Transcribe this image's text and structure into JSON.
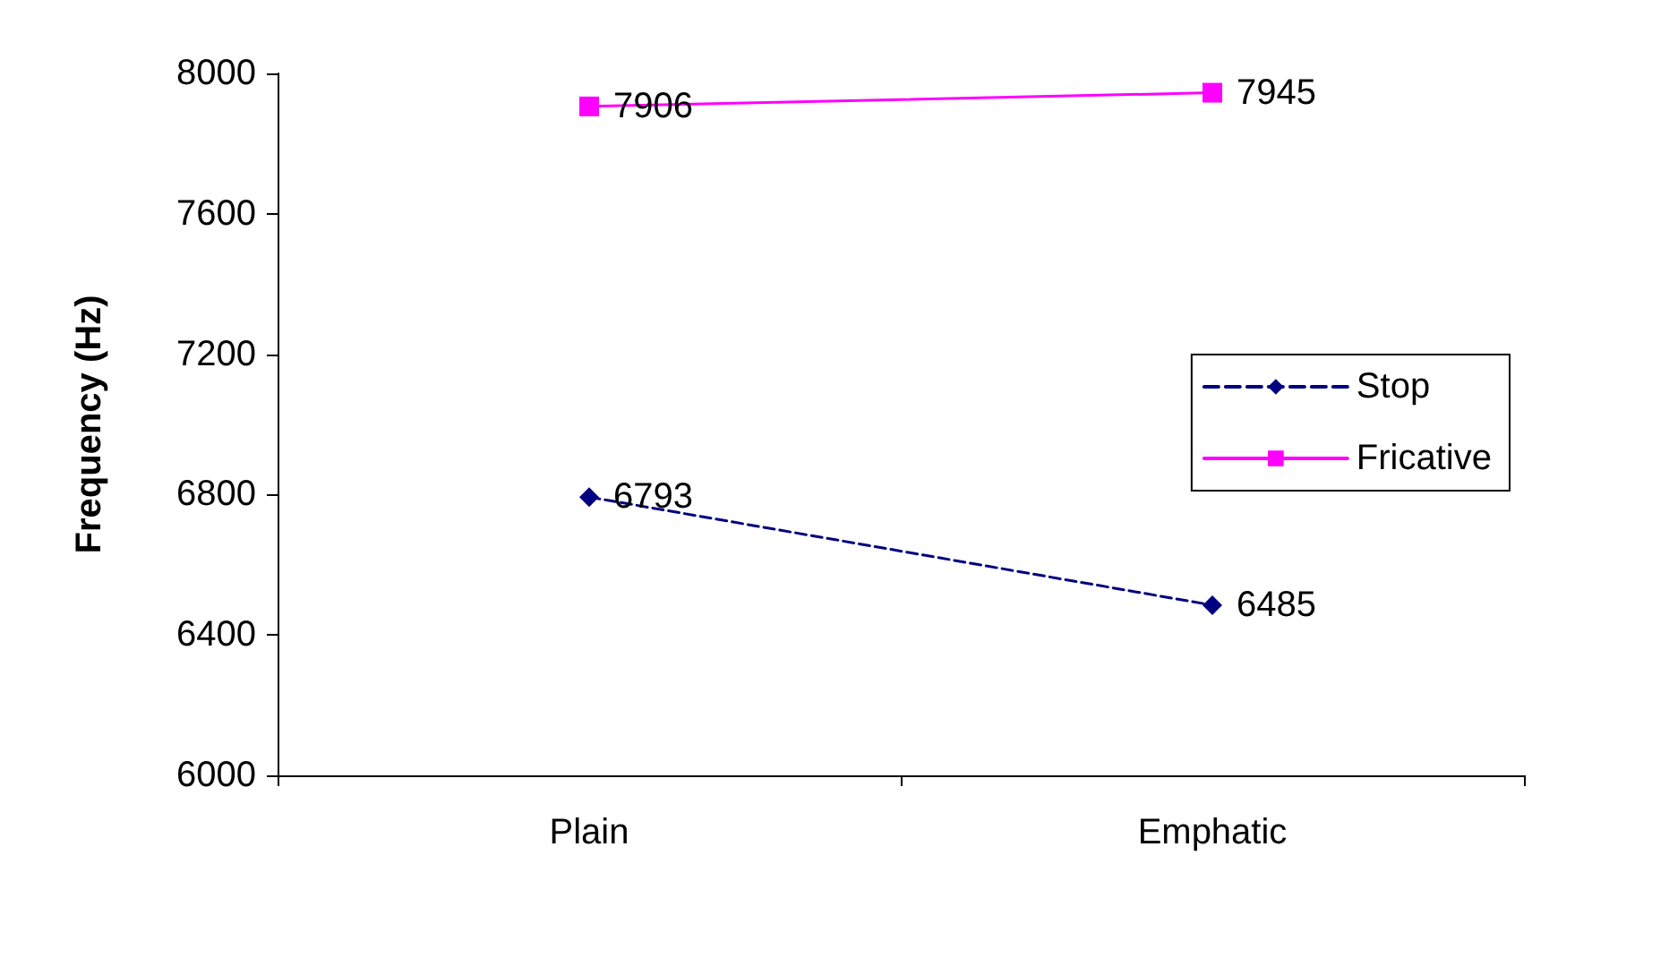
{
  "chart_data": {
    "type": "line",
    "ylabel": "Frequency (Hz)",
    "categories": [
      "Plain",
      "Emphatic"
    ],
    "series": [
      {
        "name": "Stop",
        "color": "#000080",
        "values": [
          6793,
          6485
        ],
        "marker": "diamond",
        "line_style": "dashed"
      },
      {
        "name": "Fricative",
        "color": "#ff00ff",
        "values": [
          7906,
          7945
        ],
        "marker": "square",
        "line_style": "solid"
      }
    ],
    "ylim": [
      6000,
      8000
    ],
    "yticks": [
      6000,
      6400,
      6800,
      7200,
      7600,
      8000
    ],
    "grid": false,
    "legend": "right",
    "data_labels": true
  }
}
